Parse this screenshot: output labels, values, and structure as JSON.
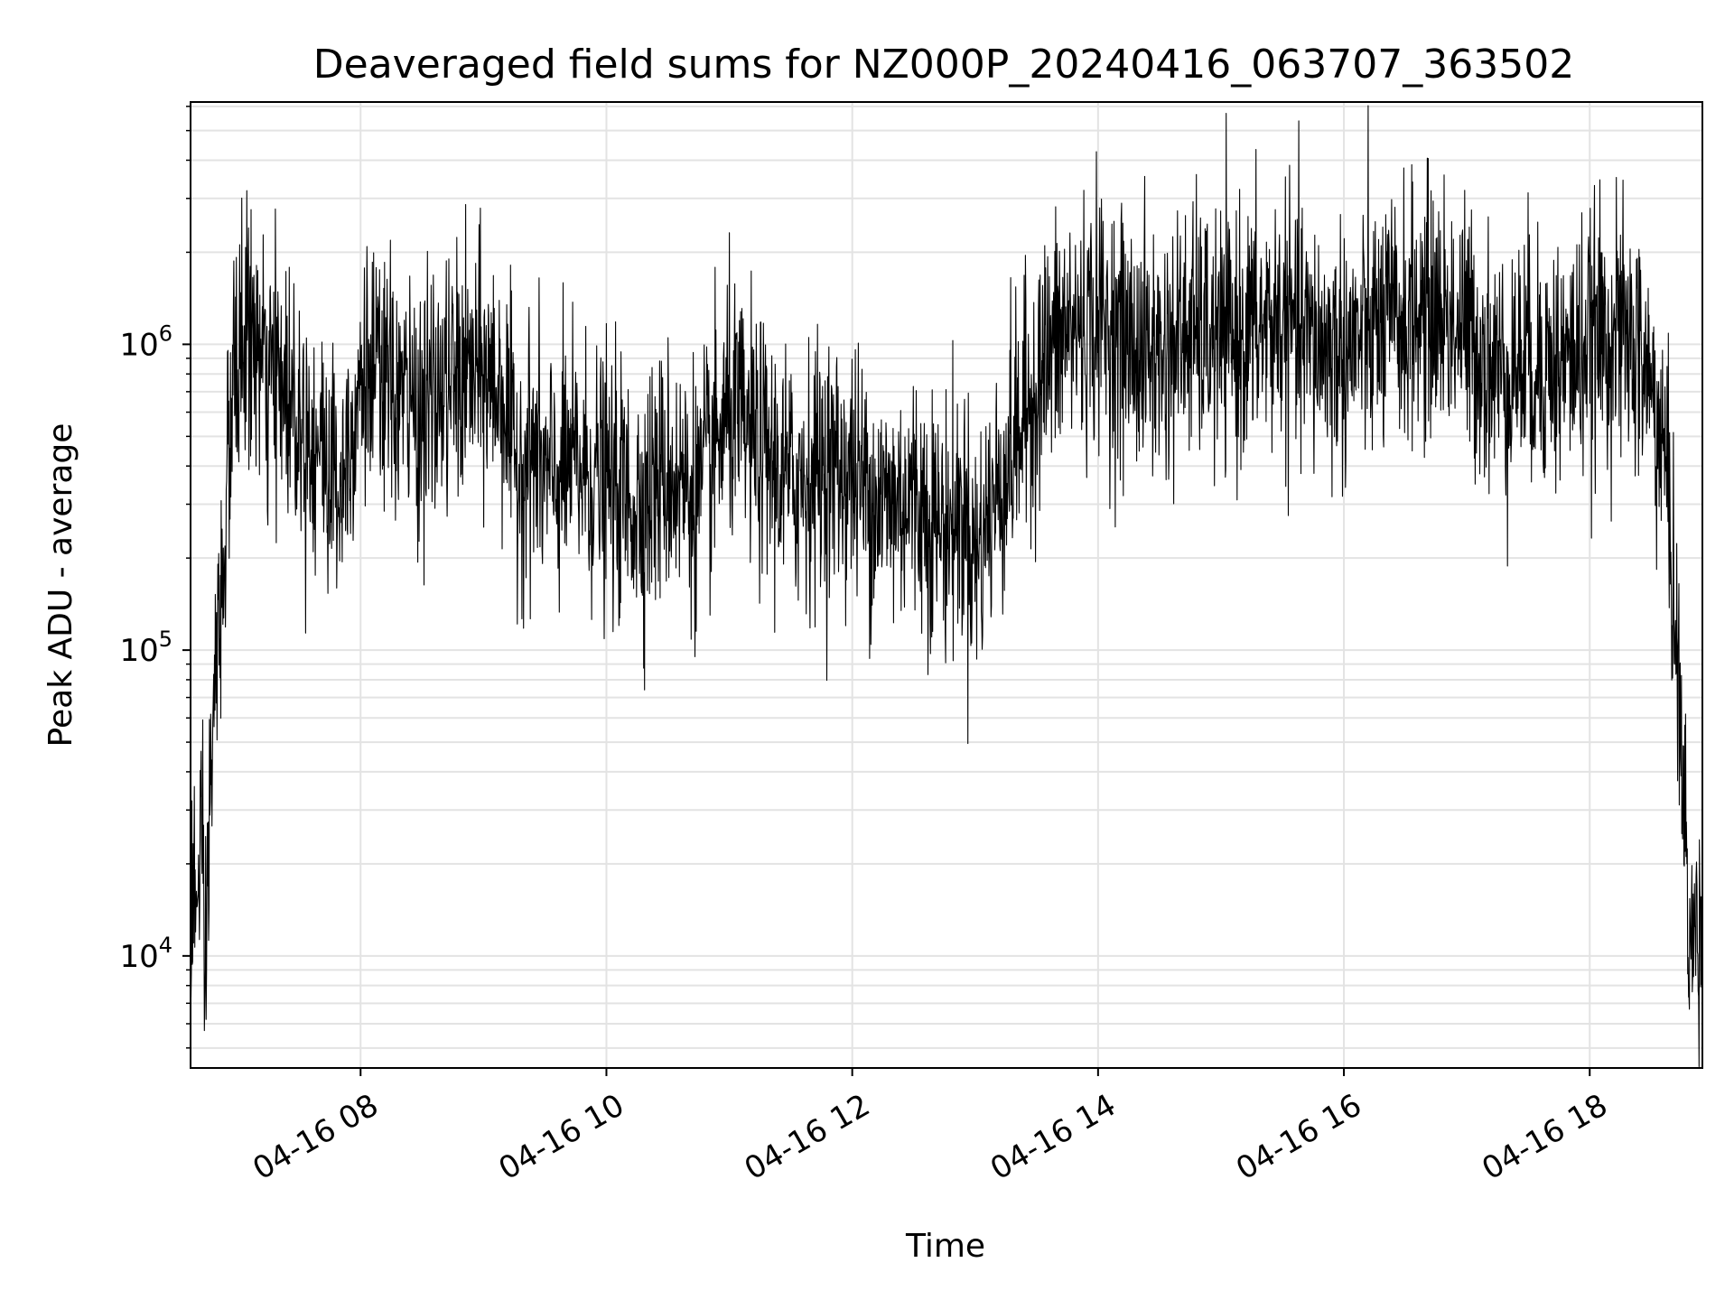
{
  "chart_data": {
    "type": "line",
    "title": "Deaveraged field sums for NZ000P_20240416_063707_363502",
    "xlabel": "Time",
    "ylabel": "Peak ADU - average",
    "x_scale": "time",
    "y_scale": "log",
    "xlim": [
      "2024-04-16 06:37",
      "2024-04-16 18:55"
    ],
    "ylim": [
      4300,
      6200000
    ],
    "grid": true,
    "line_color": "#000000",
    "x_ticks": [
      {
        "value": "2024-04-16 08:00",
        "label": "04-16 08"
      },
      {
        "value": "2024-04-16 10:00",
        "label": "04-16 10"
      },
      {
        "value": "2024-04-16 12:00",
        "label": "04-16 12"
      },
      {
        "value": "2024-04-16 14:00",
        "label": "04-16 14"
      },
      {
        "value": "2024-04-16 16:00",
        "label": "04-16 16"
      },
      {
        "value": "2024-04-16 18:00",
        "label": "04-16 18"
      }
    ],
    "y_ticks": [
      {
        "value": 10000,
        "base": "10",
        "exp": "4"
      },
      {
        "value": 100000,
        "base": "10",
        "exp": "5"
      },
      {
        "value": 1000000,
        "base": "10",
        "exp": "6"
      }
    ],
    "series": [
      {
        "x": [
          "06:37",
          "06:38",
          "06:40",
          "06:42",
          "06:44",
          "06:45",
          "06:47",
          "06:48",
          "06:50",
          "06:53",
          "06:55",
          "06:57",
          "07:00",
          "07:05",
          "07:10",
          "07:15",
          "07:20",
          "07:30",
          "07:40",
          "07:50",
          "08:00",
          "08:15",
          "08:30",
          "08:45",
          "09:00",
          "09:10",
          "09:15",
          "09:25",
          "09:30",
          "09:45",
          "10:00",
          "10:15",
          "10:30",
          "10:45",
          "11:00",
          "11:15",
          "11:30",
          "11:45",
          "12:00",
          "12:15",
          "12:30",
          "12:45",
          "12:55",
          "13:00",
          "13:05",
          "13:15",
          "13:25",
          "13:35",
          "13:45",
          "14:00",
          "14:15",
          "14:30",
          "14:45",
          "15:00",
          "15:15",
          "15:30",
          "15:45",
          "16:00",
          "16:15",
          "16:30",
          "16:45",
          "17:00",
          "17:15",
          "17:30",
          "17:45",
          "18:00",
          "18:10",
          "18:20",
          "18:25",
          "18:30",
          "18:35",
          "18:38",
          "18:40",
          "18:42",
          "18:44",
          "18:46",
          "18:48",
          "18:50",
          "18:52",
          "18:55"
        ],
        "y": [
          9000,
          20000,
          12000,
          30000,
          6000,
          15000,
          40000,
          60000,
          90000,
          200000,
          350000,
          600000,
          900000,
          1100000,
          950000,
          700000,
          800000,
          600000,
          450000,
          350000,
          800000,
          700000,
          600000,
          750000,
          800000,
          700000,
          400000,
          450000,
          350000,
          400000,
          350000,
          300000,
          380000,
          320000,
          600000,
          450000,
          350000,
          400000,
          380000,
          300000,
          320000,
          250000,
          280000,
          200000,
          250000,
          400000,
          600000,
          900000,
          1100000,
          1200000,
          1000000,
          900000,
          1100000,
          1000000,
          1100000,
          1200000,
          1000000,
          950000,
          1100000,
          1200000,
          1300000,
          1100000,
          800000,
          900000,
          850000,
          1000000,
          1100000,
          1000000,
          900000,
          700000,
          500000,
          350000,
          200000,
          120000,
          60000,
          30000,
          15000,
          10000,
          12000,
          14000
        ]
      }
    ]
  }
}
